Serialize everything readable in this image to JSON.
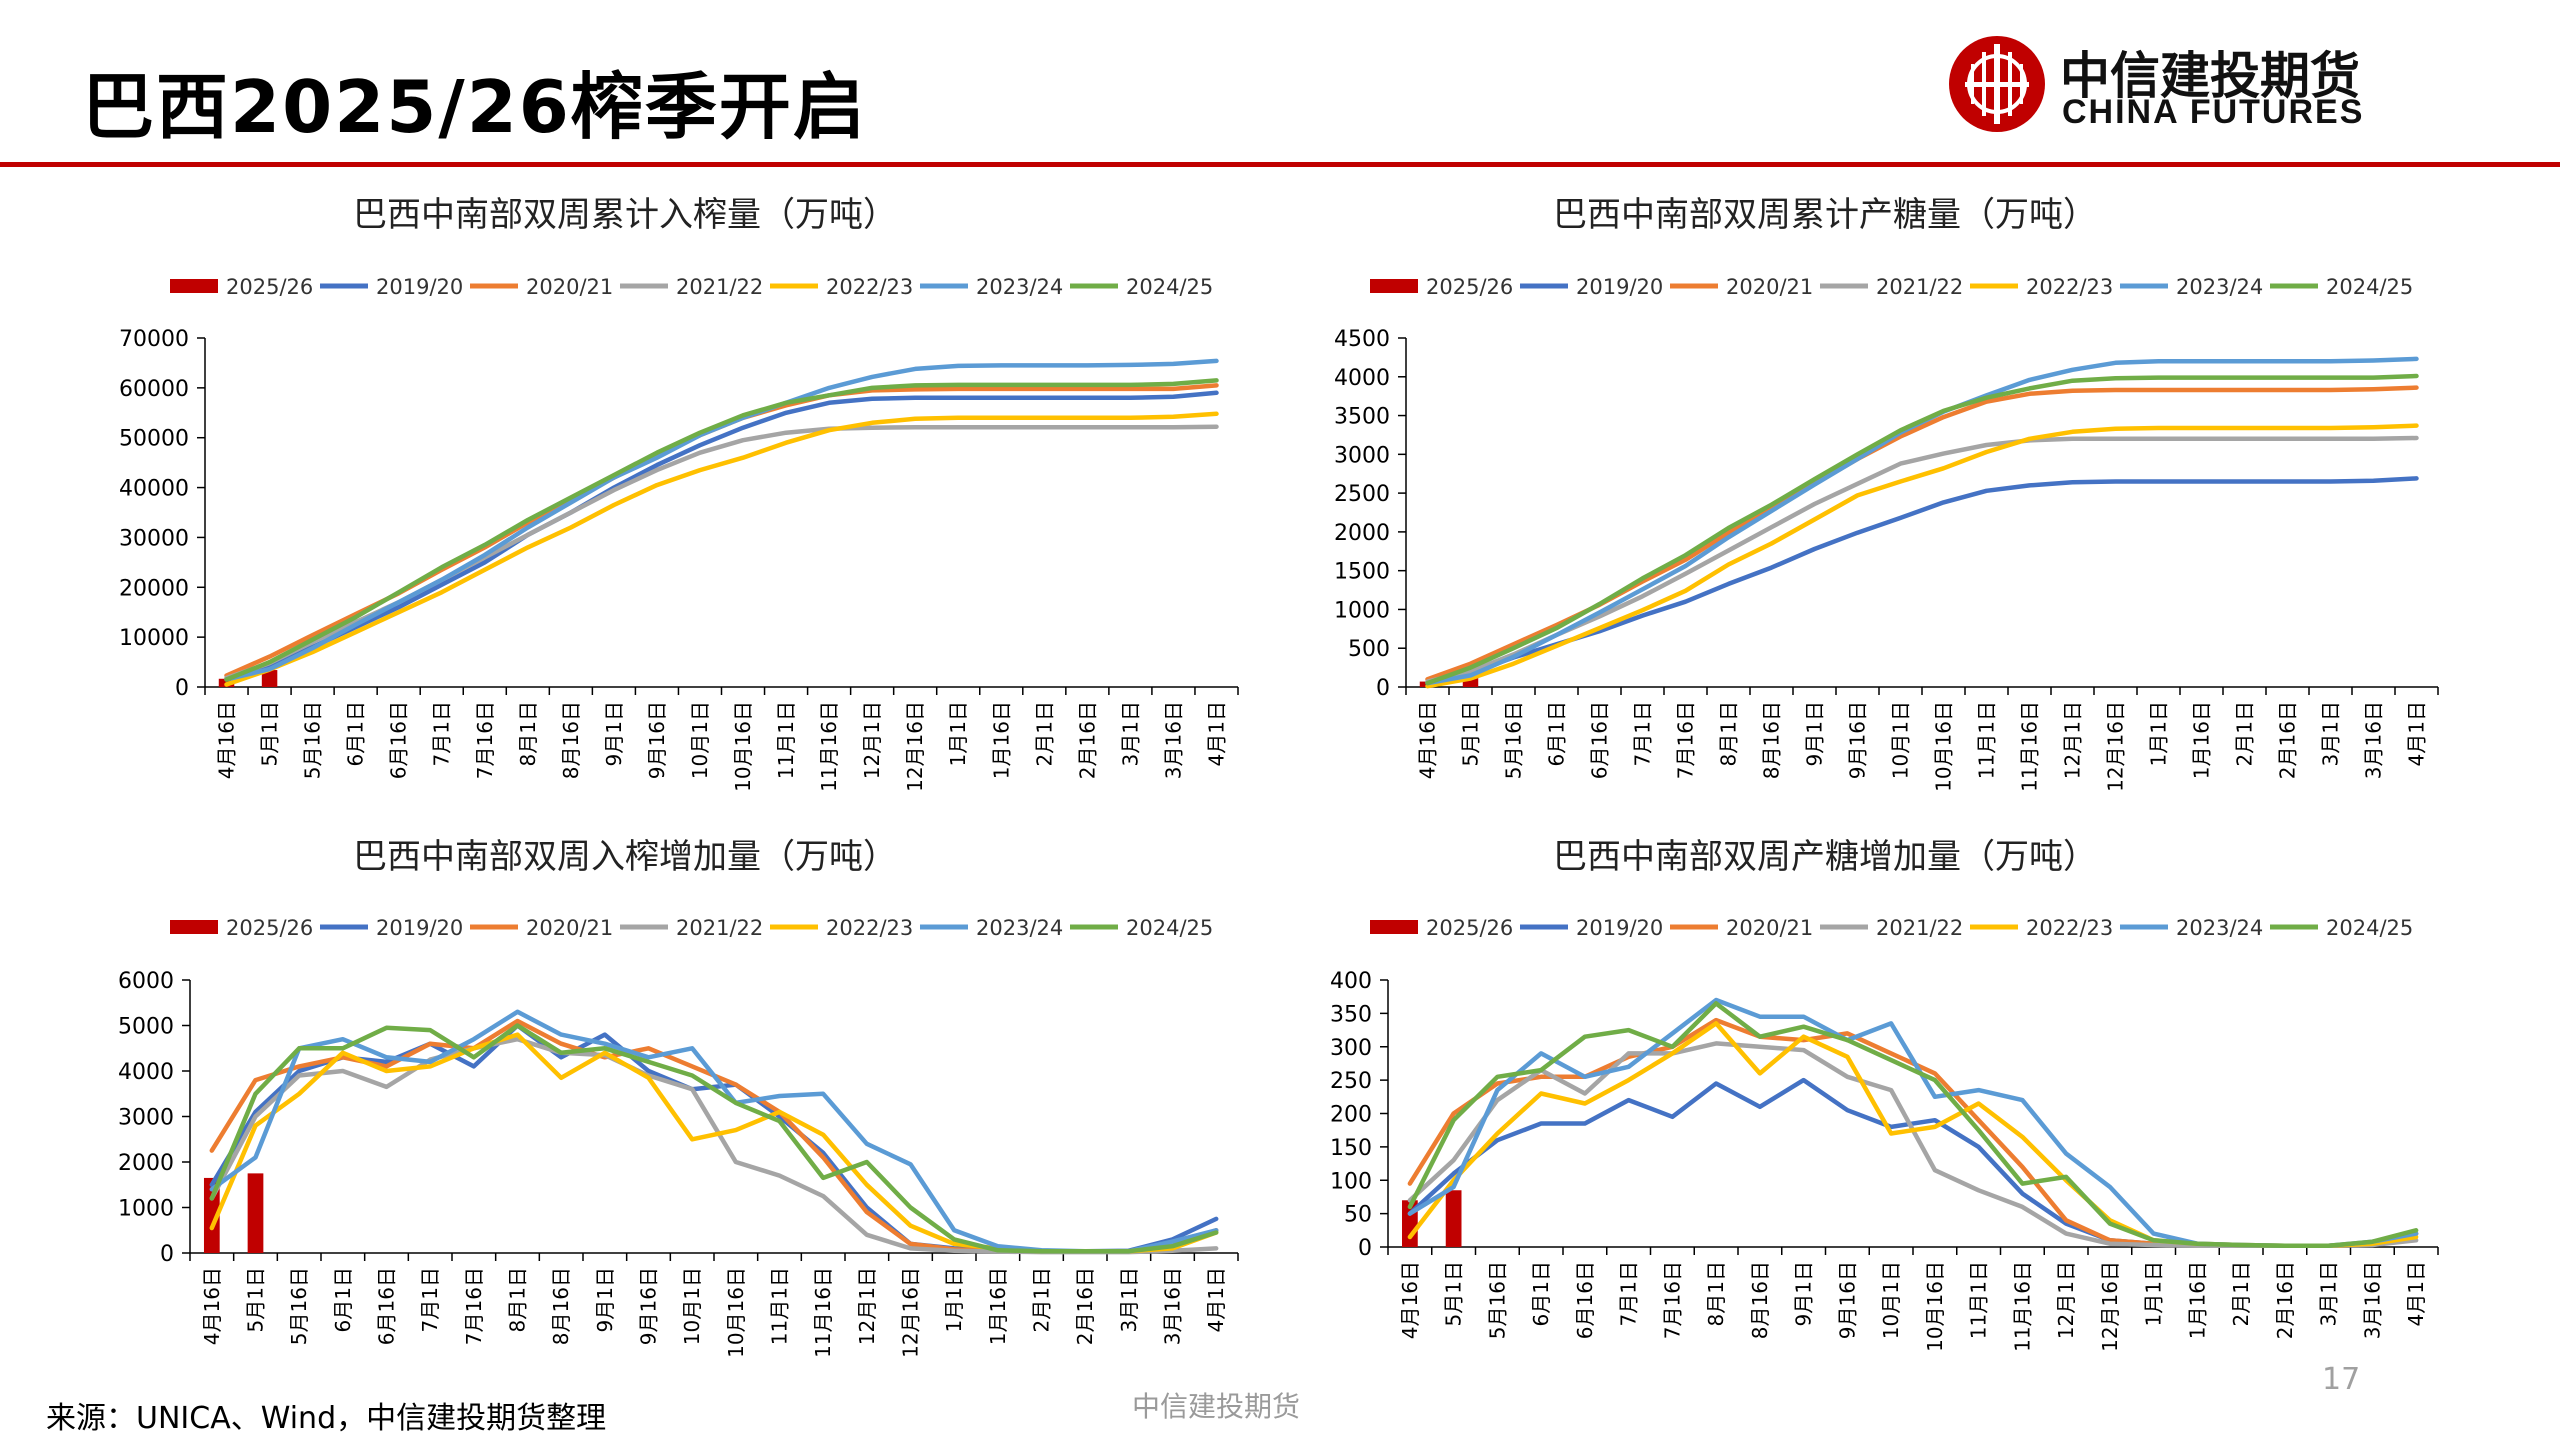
{
  "page": {
    "title": "巴西2025/26榨季开启",
    "source": "来源：UNICA、Wind，中信建投期货整理",
    "watermark": "中信建投期货",
    "page_number": "17",
    "logo_zh": "中信建投期货",
    "logo_en": "CHINA FUTURES",
    "accent_color": "#c00000"
  },
  "colors": {
    "2025/26": "#c00000",
    "2019/20": "#4472c4",
    "2020/21": "#ed7d31",
    "2021/22": "#a5a5a5",
    "2022/23": "#ffc000",
    "2023/24": "#5b9bd5",
    "2024/25": "#70ad47"
  },
  "chart_data": [
    {
      "id": "tl",
      "type": "line",
      "title": "巴西中南部双周累计入榨量（万吨）",
      "categories": [
        "4月16日",
        "5月1日",
        "5月16日",
        "6月1日",
        "6月16日",
        "7月1日",
        "7月16日",
        "8月1日",
        "8月16日",
        "9月1日",
        "9月16日",
        "10月1日",
        "10月16日",
        "11月1日",
        "11月16日",
        "12月1日",
        "12月16日",
        "1月1日",
        "1月16日",
        "2月1日",
        "2月16日",
        "3月1日",
        "3月16日",
        "4月1日"
      ],
      "ylim": [
        0,
        70000
      ],
      "yticks": [
        0,
        10000,
        20000,
        30000,
        40000,
        50000,
        60000,
        70000
      ],
      "bar_series": {
        "name": "2025/26",
        "values": [
          1650,
          3400
        ]
      },
      "series": [
        {
          "name": "2019/20",
          "values": [
            1600,
            4200,
            8000,
            12000,
            16000,
            20500,
            25000,
            30500,
            35000,
            40000,
            44500,
            48500,
            52000,
            55000,
            57000,
            57800,
            58000,
            58000,
            58000,
            58000,
            58000,
            58000,
            58200,
            59000
          ]
        },
        {
          "name": "2020/21",
          "values": [
            2300,
            6100,
            10400,
            14600,
            18800,
            23500,
            28000,
            33000,
            37500,
            42000,
            46500,
            50500,
            54000,
            56500,
            58500,
            59500,
            59700,
            59800,
            59800,
            59800,
            59800,
            59800,
            59800,
            60500
          ]
        },
        {
          "name": "2021/22",
          "values": [
            1800,
            4800,
            9000,
            13000,
            17000,
            21500,
            26000,
            30500,
            35000,
            39500,
            43500,
            47000,
            49500,
            51000,
            51800,
            52000,
            52100,
            52100,
            52100,
            52100,
            52100,
            52100,
            52100,
            52200
          ]
        },
        {
          "name": "2022/23",
          "values": [
            500,
            3500,
            7000,
            11000,
            15000,
            19000,
            23500,
            28000,
            32000,
            36500,
            40500,
            43500,
            46000,
            49000,
            51500,
            53000,
            53800,
            54000,
            54000,
            54000,
            54000,
            54000,
            54200,
            54800
          ]
        },
        {
          "name": "2023/24",
          "values": [
            1500,
            3600,
            7800,
            12500,
            17000,
            21500,
            26500,
            32000,
            37000,
            42000,
            46000,
            50500,
            54000,
            57000,
            60000,
            62200,
            63800,
            64400,
            64500,
            64500,
            64500,
            64600,
            64800,
            65400
          ]
        },
        {
          "name": "2024/25",
          "values": [
            1500,
            5000,
            9500,
            14000,
            19000,
            24000,
            28500,
            33500,
            38000,
            42500,
            47000,
            51000,
            54500,
            57000,
            58500,
            60000,
            60500,
            60600,
            60600,
            60600,
            60600,
            60600,
            60800,
            61500
          ]
        }
      ]
    },
    {
      "id": "tr",
      "type": "line",
      "title": "巴西中南部双周累计产糖量（万吨）",
      "categories": [
        "4月16日",
        "5月1日",
        "5月16日",
        "6月1日",
        "6月16日",
        "7月1日",
        "7月16日",
        "8月1日",
        "8月16日",
        "9月1日",
        "9月16日",
        "10月1日",
        "10月16日",
        "11月1日",
        "11月16日",
        "12月1日",
        "12月16日",
        "1月1日",
        "1月16日",
        "2月1日",
        "2月16日",
        "3月1日",
        "3月16日",
        "4月1日"
      ],
      "ylim": [
        0,
        4500
      ],
      "yticks": [
        0,
        500,
        1000,
        1500,
        2000,
        2500,
        3000,
        3500,
        4000,
        4500
      ],
      "bar_series": {
        "name": "2025/26",
        "values": [
          70,
          150
        ]
      },
      "series": [
        {
          "name": "2019/20",
          "values": [
            60,
            180,
            380,
            550,
            720,
            920,
            1100,
            1330,
            1540,
            1780,
            1990,
            2180,
            2380,
            2530,
            2600,
            2640,
            2650,
            2650,
            2650,
            2650,
            2650,
            2650,
            2660,
            2690
          ]
        },
        {
          "name": "2020/21",
          "values": [
            100,
            300,
            550,
            800,
            1060,
            1360,
            1640,
            1990,
            2310,
            2620,
            2940,
            3230,
            3480,
            3680,
            3780,
            3820,
            3830,
            3830,
            3830,
            3830,
            3830,
            3830,
            3840,
            3860
          ]
        },
        {
          "name": "2021/22",
          "values": [
            70,
            200,
            420,
            670,
            910,
            1170,
            1460,
            1760,
            2060,
            2360,
            2620,
            2880,
            3010,
            3120,
            3180,
            3200,
            3200,
            3200,
            3200,
            3200,
            3200,
            3200,
            3200,
            3210
          ]
        },
        {
          "name": "2022/23",
          "values": [
            10,
            110,
            300,
            530,
            760,
            990,
            1240,
            1580,
            1850,
            2160,
            2470,
            2650,
            2820,
            3030,
            3200,
            3290,
            3330,
            3340,
            3340,
            3340,
            3340,
            3340,
            3350,
            3370
          ]
        },
        {
          "name": "2023/24",
          "values": [
            50,
            150,
            390,
            670,
            960,
            1260,
            1560,
            1930,
            2270,
            2610,
            2940,
            3280,
            3550,
            3760,
            3960,
            4090,
            4180,
            4200,
            4200,
            4200,
            4200,
            4200,
            4210,
            4230
          ]
        },
        {
          "name": "2024/25",
          "values": [
            50,
            250,
            500,
            760,
            1070,
            1400,
            1700,
            2050,
            2350,
            2680,
            3000,
            3310,
            3560,
            3730,
            3850,
            3950,
            3980,
            3990,
            3990,
            3990,
            3990,
            3990,
            3990,
            4010
          ]
        }
      ]
    },
    {
      "id": "bl",
      "type": "line",
      "title": "巴西中南部双周入榨增加量（万吨）",
      "categories": [
        "4月16日",
        "5月1日",
        "5月16日",
        "6月1日",
        "6月16日",
        "7月1日",
        "7月16日",
        "8月1日",
        "8月16日",
        "9月1日",
        "9月16日",
        "10月1日",
        "10月16日",
        "11月1日",
        "11月16日",
        "12月1日",
        "12月16日",
        "1月1日",
        "1月16日",
        "2月1日",
        "2月16日",
        "3月1日",
        "3月16日",
        "4月1日"
      ],
      "ylim": [
        0,
        6000
      ],
      "yticks": [
        0,
        1000,
        2000,
        3000,
        4000,
        5000,
        6000
      ],
      "bar_series": {
        "name": "2025/26",
        "values": [
          1650,
          1750
        ]
      },
      "series": [
        {
          "name": "2019/20",
          "values": [
            1500,
            3100,
            4000,
            4300,
            4200,
            4600,
            4100,
            5000,
            4300,
            4800,
            4000,
            3600,
            3700,
            3000,
            2200,
            1000,
            200,
            100,
            60,
            40,
            40,
            50,
            300,
            750
          ]
        },
        {
          "name": "2020/21",
          "values": [
            2250,
            3800,
            4100,
            4300,
            4100,
            4600,
            4500,
            5100,
            4600,
            4300,
            4500,
            4100,
            3700,
            3100,
            2100,
            900,
            200,
            80,
            40,
            30,
            30,
            30,
            150,
            500
          ]
        },
        {
          "name": "2021/22",
          "values": [
            1200,
            3000,
            3900,
            4000,
            3650,
            4250,
            4500,
            4700,
            4400,
            4350,
            3900,
            3600,
            2000,
            1700,
            1250,
            400,
            100,
            50,
            30,
            20,
            20,
            20,
            50,
            100
          ]
        },
        {
          "name": "2022/23",
          "values": [
            550,
            2800,
            3500,
            4400,
            4000,
            4100,
            4500,
            4800,
            3850,
            4400,
            3850,
            2500,
            2700,
            3100,
            2600,
            1500,
            600,
            200,
            100,
            40,
            40,
            40,
            100,
            450
          ]
        },
        {
          "name": "2023/24",
          "values": [
            1400,
            2100,
            4500,
            4700,
            4300,
            4200,
            4700,
            5300,
            4800,
            4600,
            4300,
            4500,
            3300,
            3450,
            3500,
            2400,
            1950,
            500,
            150,
            60,
            40,
            40,
            250,
            500
          ]
        },
        {
          "name": "2024/25",
          "values": [
            1200,
            3500,
            4500,
            4500,
            4950,
            4900,
            4300,
            5000,
            4400,
            4500,
            4200,
            3900,
            3300,
            2900,
            1650,
            2000,
            1000,
            300,
            60,
            40,
            40,
            40,
            150,
            450
          ]
        }
      ]
    },
    {
      "id": "br",
      "type": "line",
      "title": "巴西中南部双周产糖增加量（万吨）",
      "categories": [
        "4月16日",
        "5月1日",
        "5月16日",
        "6月1日",
        "6月16日",
        "7月1日",
        "7月16日",
        "8月1日",
        "8月16日",
        "9月1日",
        "9月16日",
        "10月1日",
        "10月16日",
        "11月1日",
        "11月16日",
        "12月1日",
        "12月16日",
        "1月1日",
        "1月16日",
        "2月1日",
        "2月16日",
        "3月1日",
        "3月16日",
        "4月1日"
      ],
      "ylim": [
        0,
        400
      ],
      "yticks": [
        0,
        50,
        100,
        150,
        200,
        250,
        300,
        350,
        400
      ],
      "bar_series": {
        "name": "2025/26",
        "values": [
          70,
          85
        ]
      },
      "series": [
        {
          "name": "2019/20",
          "values": [
            50,
            110,
            160,
            185,
            185,
            220,
            195,
            245,
            210,
            250,
            205,
            180,
            190,
            150,
            80,
            35,
            10,
            5,
            3,
            2,
            2,
            2,
            5,
            20
          ]
        },
        {
          "name": "2020/21",
          "values": [
            95,
            200,
            245,
            255,
            255,
            285,
            300,
            340,
            315,
            310,
            320,
            290,
            260,
            190,
            120,
            40,
            10,
            5,
            3,
            2,
            2,
            2,
            5,
            20
          ]
        },
        {
          "name": "2021/22",
          "values": [
            70,
            130,
            220,
            265,
            230,
            290,
            290,
            305,
            300,
            295,
            255,
            235,
            115,
            85,
            60,
            20,
            5,
            3,
            2,
            2,
            2,
            2,
            3,
            10
          ]
        },
        {
          "name": "2022/23",
          "values": [
            15,
            100,
            170,
            230,
            215,
            250,
            290,
            335,
            260,
            315,
            285,
            170,
            180,
            215,
            165,
            100,
            40,
            10,
            5,
            3,
            2,
            2,
            5,
            15
          ]
        },
        {
          "name": "2023/24",
          "values": [
            50,
            90,
            235,
            290,
            255,
            270,
            320,
            370,
            345,
            345,
            310,
            335,
            225,
            235,
            220,
            140,
            90,
            20,
            5,
            3,
            2,
            2,
            8,
            20
          ]
        },
        {
          "name": "2024/25",
          "values": [
            60,
            190,
            255,
            265,
            315,
            325,
            300,
            365,
            315,
            330,
            310,
            280,
            250,
            175,
            95,
            105,
            35,
            10,
            5,
            3,
            2,
            2,
            8,
            25
          ]
        }
      ]
    }
  ]
}
